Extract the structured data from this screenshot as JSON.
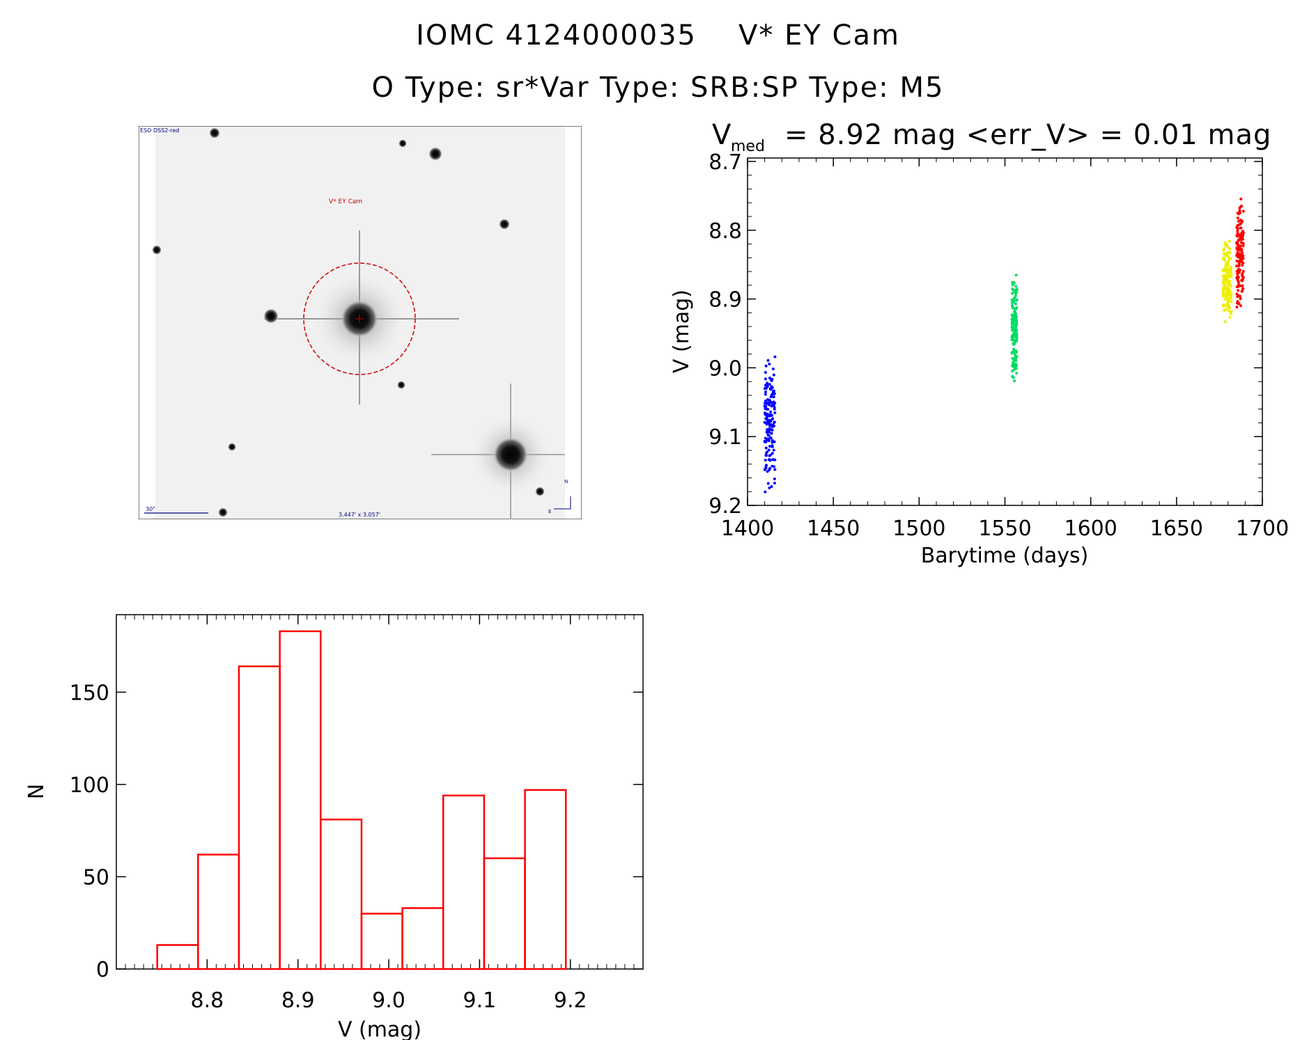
{
  "header": {
    "object_id": "IOMC 4124000035",
    "object_name": "V* EY Cam",
    "o_type": "O Type: sr*",
    "var_type": "Var Type: SRB:",
    "sp_type": "SP Type: M5"
  },
  "image": {
    "survey_label": "ESO DSS2-red",
    "target_label": "V* EY Cam",
    "scale_label": "30\"",
    "size_label": "3.447' x 3.057'",
    "north_label": "N",
    "east_label": "E"
  },
  "chart_data": [
    {
      "type": "scatter",
      "title_main": "V",
      "title_sub": "med",
      "title_rest": "= 8.92 mag <err_V> = 0.01 mag",
      "xlabel": "Barytime (days)",
      "ylabel": "V (mag)",
      "xlim": [
        1400,
        1700
      ],
      "ylim": [
        9.2,
        8.7
      ],
      "xticks": [
        "1400",
        "1450",
        "1500",
        "1550",
        "1600",
        "1650",
        "1700"
      ],
      "yticks": [
        "8.7",
        "8.8",
        "8.9",
        "9.0",
        "9.1",
        "9.2"
      ],
      "groups": [
        {
          "color": "#0000ff",
          "x_range": [
            1410,
            1416
          ],
          "y_range": [
            8.98,
            9.19
          ]
        },
        {
          "color": "#00dd66",
          "x_range": [
            1554,
            1557
          ],
          "y_range": [
            8.86,
            9.03
          ]
        },
        {
          "color": "#eeee00",
          "x_range": [
            1677,
            1682
          ],
          "y_range": [
            8.81,
            8.94
          ]
        },
        {
          "color": "#ff0000",
          "x_range": [
            1685,
            1689
          ],
          "y_range": [
            8.75,
            8.92
          ]
        }
      ]
    },
    {
      "type": "bar",
      "xlabel": "V (mag)",
      "ylabel": "N",
      "xlim": [
        8.7,
        9.28
      ],
      "ylim": [
        0,
        185
      ],
      "xticks": [
        "8.8",
        "8.9",
        "9.0",
        "9.1",
        "9.2"
      ],
      "yticks": [
        "0",
        "50",
        "100",
        "150"
      ],
      "bins": [
        {
          "x0": 8.745,
          "x1": 8.79,
          "value": 13
        },
        {
          "x0": 8.79,
          "x1": 8.835,
          "value": 62
        },
        {
          "x0": 8.835,
          "x1": 8.88,
          "value": 164
        },
        {
          "x0": 8.88,
          "x1": 8.925,
          "value": 183
        },
        {
          "x0": 8.925,
          "x1": 8.97,
          "value": 81
        },
        {
          "x0": 8.97,
          "x1": 9.015,
          "value": 30
        },
        {
          "x0": 9.015,
          "x1": 9.06,
          "value": 33
        },
        {
          "x0": 9.06,
          "x1": 9.105,
          "value": 94
        },
        {
          "x0": 9.105,
          "x1": 9.15,
          "value": 60
        },
        {
          "x0": 9.15,
          "x1": 9.195,
          "value": 97
        }
      ],
      "bar_color": "#ff0000"
    }
  ]
}
